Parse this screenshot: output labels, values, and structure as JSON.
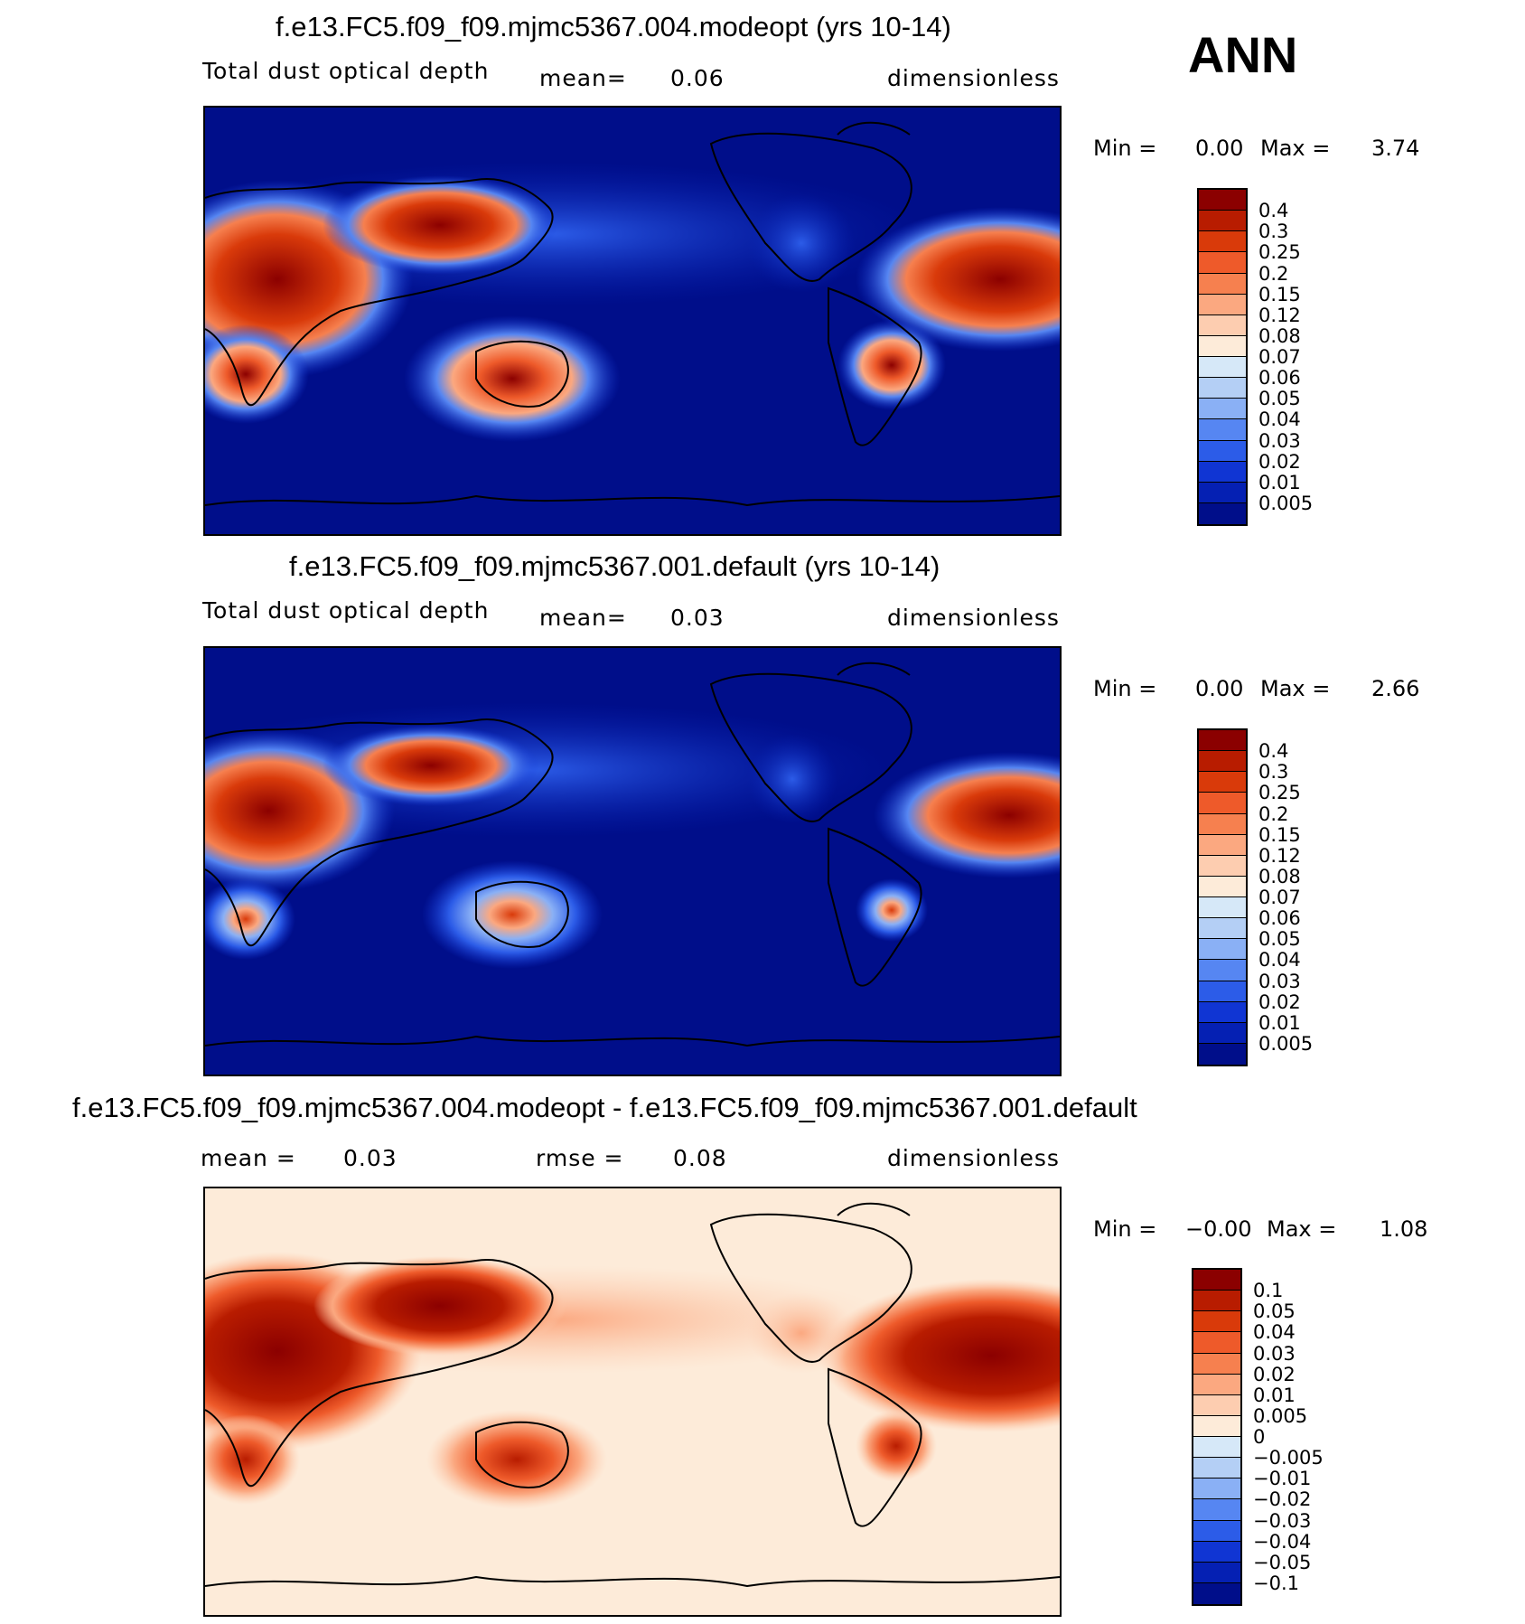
{
  "season": "ANN",
  "panels": [
    {
      "title": "f.e13.FC5.f09_f09.mjmc5367.004.modeopt (yrs 10-14)",
      "field": "Total dust optical depth",
      "left_label": "mean=",
      "left_value": "0.06",
      "units": "dimensionless",
      "min_label": "Min =",
      "min_value": "0.00",
      "max_label": "Max =",
      "max_value": "3.74",
      "levels": [
        "0.4",
        "0.3",
        "0.25",
        "0.2",
        "0.15",
        "0.12",
        "0.08",
        "0.07",
        "0.06",
        "0.05",
        "0.04",
        "0.03",
        "0.02",
        "0.01",
        "0.005"
      ],
      "colors": [
        "#8b0000",
        "#b81c00",
        "#d93a0a",
        "#ee5a2a",
        "#f6804f",
        "#fba880",
        "#fdcdb0",
        "#fdebd9",
        "#d6e8f8",
        "#b4cff5",
        "#8ab0f5",
        "#5686f2",
        "#2c5ce8",
        "#1035d3",
        "#0520b3",
        "#000e8a"
      ]
    },
    {
      "title": "f.e13.FC5.f09_f09.mjmc5367.001.default (yrs 10-14)",
      "field": "Total dust optical depth",
      "left_label": "mean=",
      "left_value": "0.03",
      "units": "dimensionless",
      "min_label": "Min =",
      "min_value": "0.00",
      "max_label": "Max =",
      "max_value": "2.66",
      "levels": [
        "0.4",
        "0.3",
        "0.25",
        "0.2",
        "0.15",
        "0.12",
        "0.08",
        "0.07",
        "0.06",
        "0.05",
        "0.04",
        "0.03",
        "0.02",
        "0.01",
        "0.005"
      ],
      "colors": [
        "#8b0000",
        "#b81c00",
        "#d93a0a",
        "#ee5a2a",
        "#f6804f",
        "#fba880",
        "#fdcdb0",
        "#fdebd9",
        "#d6e8f8",
        "#b4cff5",
        "#8ab0f5",
        "#5686f2",
        "#2c5ce8",
        "#1035d3",
        "#0520b3",
        "#000e8a"
      ]
    },
    {
      "title": "f.e13.FC5.f09_f09.mjmc5367.004.modeopt - f.e13.FC5.f09_f09.mjmc5367.001.default",
      "left_label": "mean =",
      "left_value": "0.03",
      "mid_label": "rmse =",
      "mid_value": "0.08",
      "units": "dimensionless",
      "min_label": "Min =",
      "min_value": "−0.00",
      "max_label": "Max =",
      "max_value": "1.08",
      "levels": [
        "0.1",
        "0.05",
        "0.04",
        "0.03",
        "0.02",
        "0.01",
        "0.005",
        "0",
        "−0.005",
        "−0.01",
        "−0.02",
        "−0.03",
        "−0.04",
        "−0.05",
        "−0.1"
      ],
      "colors": [
        "#8b0000",
        "#b81c00",
        "#d93a0a",
        "#ee5a2a",
        "#f6804f",
        "#fba880",
        "#fdcdb0",
        "#fdebd9",
        "#d6e8f8",
        "#b4cff5",
        "#8ab0f5",
        "#5686f2",
        "#2c5ce8",
        "#1035d3",
        "#0520b3",
        "#000e8a"
      ]
    }
  ]
}
